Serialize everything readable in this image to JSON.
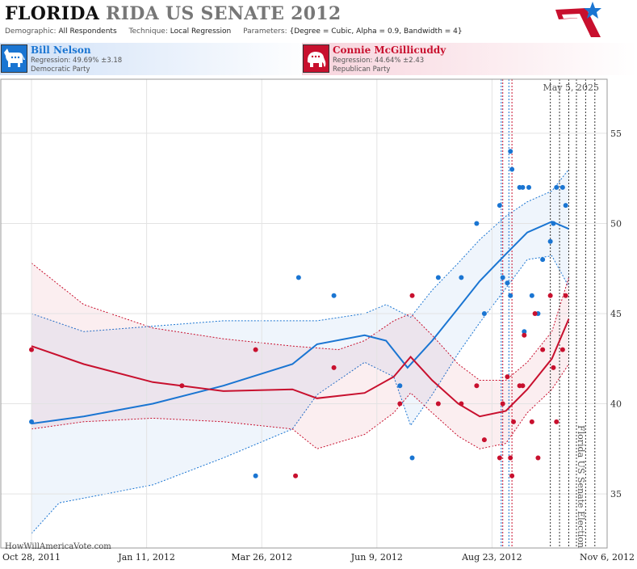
{
  "header": {
    "title_state": "FLORIDA",
    "title_race": "RIDA US SENATE 2012",
    "demographic_label": "Demographic:",
    "demographic_value": "All Respondents",
    "technique_label": "Technique:",
    "technique_value": "Local Regression",
    "parameters_label": "Parameters:",
    "parameters_value": "{Degree = Cubic, Alpha = 0.9, Bandwidth = 4}"
  },
  "candidates": [
    {
      "name": "Bill Nelson",
      "regression": "Regression: 49.69% ±3.18",
      "party": "Democratic Party",
      "color": "#1a75d2",
      "icon": "donkey-icon"
    },
    {
      "name": "Connie McGillicuddy",
      "regression": "Regression: 44.64% ±2.43",
      "party": "Republican Party",
      "color": "#c8102e",
      "icon": "elephant-icon"
    }
  ],
  "chart_data": {
    "type": "scatter",
    "x_label_dates": [
      "Oct 28, 2011",
      "Jan 11, 2012",
      "Mar 26, 2012",
      "Jun 9, 2012",
      "Aug 23, 2012",
      "Nov 6, 2012"
    ],
    "xlim": [
      "2011-10-08",
      "2012-11-06"
    ],
    "ylim": [
      32,
      58
    ],
    "y_ticks": [
      35,
      40,
      45,
      50,
      55
    ],
    "date_annotation": "May 5, 2025",
    "event_label": "Florida US Senate Election",
    "watermark": "HowWillAmericaVote.com",
    "grid": true,
    "vertical_markers": [
      {
        "date": "2012-08-29",
        "color": "#1a75d2"
      },
      {
        "date": "2012-09-03",
        "color": "#1a75d2"
      },
      {
        "date": "2012-08-30",
        "color": "#c8102e"
      },
      {
        "date": "2012-09-05",
        "color": "#c8102e"
      },
      {
        "date": "2012-09-30",
        "color": "#333333"
      },
      {
        "date": "2012-10-06",
        "color": "#333333"
      },
      {
        "date": "2012-10-12",
        "color": "#333333"
      },
      {
        "date": "2012-10-17",
        "color": "#333333"
      },
      {
        "date": "2012-10-23",
        "color": "#333333"
      },
      {
        "date": "2012-10-29",
        "color": "#333333"
      },
      {
        "date": "2012-11-06",
        "color": "#333333"
      }
    ],
    "series": [
      {
        "name": "Bill Nelson",
        "color": "#1a75d2",
        "points": [
          [
            "2011-10-28",
            39
          ],
          [
            "2012-03-22",
            36
          ],
          [
            "2012-04-19",
            47
          ],
          [
            "2012-05-12",
            46
          ],
          [
            "2012-06-24",
            41
          ],
          [
            "2012-07-02",
            37
          ],
          [
            "2012-07-19",
            47
          ],
          [
            "2012-08-03",
            47
          ],
          [
            "2012-08-13",
            50
          ],
          [
            "2012-08-28",
            51
          ],
          [
            "2012-08-18",
            45
          ],
          [
            "2012-09-04",
            54
          ],
          [
            "2012-09-05",
            53
          ],
          [
            "2012-08-30",
            47
          ],
          [
            "2012-09-02",
            46.7
          ],
          [
            "2012-09-04",
            46
          ],
          [
            "2012-09-10",
            52
          ],
          [
            "2012-09-12",
            52
          ],
          [
            "2012-09-13",
            44
          ],
          [
            "2012-09-16",
            52
          ],
          [
            "2012-09-18",
            46
          ],
          [
            "2012-09-22",
            45
          ],
          [
            "2012-09-25",
            48
          ],
          [
            "2012-09-30",
            49
          ],
          [
            "2012-10-02",
            50
          ],
          [
            "2012-10-04",
            52
          ],
          [
            "2012-10-08",
            52
          ],
          [
            "2012-10-10",
            51
          ]
        ],
        "trend": [
          [
            "2011-10-28",
            38.9
          ],
          [
            "2011-12-01",
            39.3
          ],
          [
            "2012-01-15",
            40
          ],
          [
            "2012-03-01",
            41
          ],
          [
            "2012-04-15",
            42.2
          ],
          [
            "2012-05-01",
            43.3
          ],
          [
            "2012-06-01",
            43.8
          ],
          [
            "2012-06-15",
            43.5
          ],
          [
            "2012-06-29",
            42
          ],
          [
            "2012-07-15",
            43.5
          ],
          [
            "2012-08-01",
            45.3
          ],
          [
            "2012-08-15",
            46.8
          ],
          [
            "2012-09-01",
            48.3
          ],
          [
            "2012-09-15",
            49.5
          ],
          [
            "2012-10-01",
            50.1
          ],
          [
            "2012-10-12",
            49.7
          ]
        ],
        "upper": [
          [
            "2011-10-28",
            45
          ],
          [
            "2011-12-01",
            44
          ],
          [
            "2012-01-15",
            44.3
          ],
          [
            "2012-03-01",
            44.6
          ],
          [
            "2012-04-15",
            44.6
          ],
          [
            "2012-05-01",
            44.6
          ],
          [
            "2012-06-01",
            45
          ],
          [
            "2012-06-15",
            45.5
          ],
          [
            "2012-07-01",
            44.8
          ],
          [
            "2012-07-15",
            46.3
          ],
          [
            "2012-08-01",
            47.8
          ],
          [
            "2012-08-15",
            49.1
          ],
          [
            "2012-09-01",
            50.4
          ],
          [
            "2012-09-15",
            51.2
          ],
          [
            "2012-10-01",
            51.8
          ],
          [
            "2012-10-12",
            53
          ]
        ],
        "lower": [
          [
            "2011-10-28",
            32.8
          ],
          [
            "2011-11-15",
            34.5
          ],
          [
            "2012-01-15",
            35.5
          ],
          [
            "2012-03-01",
            37
          ],
          [
            "2012-04-15",
            38.6
          ],
          [
            "2012-05-01",
            40.5
          ],
          [
            "2012-06-01",
            42.3
          ],
          [
            "2012-06-20",
            41.5
          ],
          [
            "2012-07-01",
            38.8
          ],
          [
            "2012-07-15",
            40.5
          ],
          [
            "2012-08-01",
            42.8
          ],
          [
            "2012-08-15",
            44.5
          ],
          [
            "2012-09-01",
            46.4
          ],
          [
            "2012-09-15",
            48
          ],
          [
            "2012-10-01",
            48.2
          ],
          [
            "2012-10-12",
            46.5
          ]
        ]
      },
      {
        "name": "Connie McGillicuddy",
        "color": "#c8102e",
        "points": [
          [
            "2011-10-28",
            43
          ],
          [
            "2012-02-03",
            41
          ],
          [
            "2012-03-22",
            43
          ],
          [
            "2012-04-17",
            36
          ],
          [
            "2012-05-12",
            42
          ],
          [
            "2012-06-24",
            40
          ],
          [
            "2012-07-02",
            46
          ],
          [
            "2012-07-19",
            40
          ],
          [
            "2012-08-03",
            40
          ],
          [
            "2012-08-13",
            41
          ],
          [
            "2012-08-18",
            38
          ],
          [
            "2012-08-28",
            37
          ],
          [
            "2012-08-30",
            40
          ],
          [
            "2012-09-02",
            41.5
          ],
          [
            "2012-09-04",
            37
          ],
          [
            "2012-09-05",
            36
          ],
          [
            "2012-09-06",
            39
          ],
          [
            "2012-09-10",
            41
          ],
          [
            "2012-09-12",
            41
          ],
          [
            "2012-09-13",
            43.8
          ],
          [
            "2012-09-18",
            39
          ],
          [
            "2012-09-20",
            45
          ],
          [
            "2012-09-22",
            37
          ],
          [
            "2012-09-25",
            43
          ],
          [
            "2012-09-30",
            46
          ],
          [
            "2012-10-02",
            42
          ],
          [
            "2012-10-04",
            39
          ],
          [
            "2012-10-08",
            43
          ],
          [
            "2012-10-10",
            46
          ]
        ],
        "trend": [
          [
            "2011-10-28",
            43.2
          ],
          [
            "2011-12-01",
            42.2
          ],
          [
            "2012-01-15",
            41.2
          ],
          [
            "2012-03-01",
            40.7
          ],
          [
            "2012-04-15",
            40.8
          ],
          [
            "2012-05-01",
            40.3
          ],
          [
            "2012-06-01",
            40.6
          ],
          [
            "2012-06-20",
            41.5
          ],
          [
            "2012-07-01",
            42.6
          ],
          [
            "2012-07-15",
            41.3
          ],
          [
            "2012-08-01",
            40
          ],
          [
            "2012-08-15",
            39.3
          ],
          [
            "2012-09-01",
            39.6
          ],
          [
            "2012-09-15",
            40.8
          ],
          [
            "2012-10-01",
            42.5
          ],
          [
            "2012-10-12",
            44.7
          ]
        ],
        "upper": [
          [
            "2011-10-28",
            47.8
          ],
          [
            "2011-12-01",
            45.5
          ],
          [
            "2012-01-15",
            44.2
          ],
          [
            "2012-03-01",
            43.6
          ],
          [
            "2012-04-15",
            43.2
          ],
          [
            "2012-05-15",
            43
          ],
          [
            "2012-06-01",
            43.5
          ],
          [
            "2012-06-20",
            44.6
          ],
          [
            "2012-07-01",
            45
          ],
          [
            "2012-07-15",
            43.8
          ],
          [
            "2012-08-01",
            42.2
          ],
          [
            "2012-08-15",
            41.3
          ],
          [
            "2012-09-01",
            41.3
          ],
          [
            "2012-09-15",
            42.3
          ],
          [
            "2012-10-01",
            44
          ],
          [
            "2012-10-12",
            47
          ]
        ],
        "lower": [
          [
            "2011-10-28",
            38.6
          ],
          [
            "2011-12-01",
            39
          ],
          [
            "2012-01-15",
            39.2
          ],
          [
            "2012-03-01",
            39
          ],
          [
            "2012-04-15",
            38.6
          ],
          [
            "2012-05-01",
            37.5
          ],
          [
            "2012-06-01",
            38.3
          ],
          [
            "2012-06-20",
            39.5
          ],
          [
            "2012-07-01",
            40.6
          ],
          [
            "2012-07-15",
            39.5
          ],
          [
            "2012-08-01",
            38.2
          ],
          [
            "2012-08-15",
            37.5
          ],
          [
            "2012-09-01",
            37.8
          ],
          [
            "2012-09-15",
            39.5
          ],
          [
            "2012-10-01",
            40.8
          ],
          [
            "2012-10-12",
            42.2
          ]
        ]
      }
    ]
  }
}
